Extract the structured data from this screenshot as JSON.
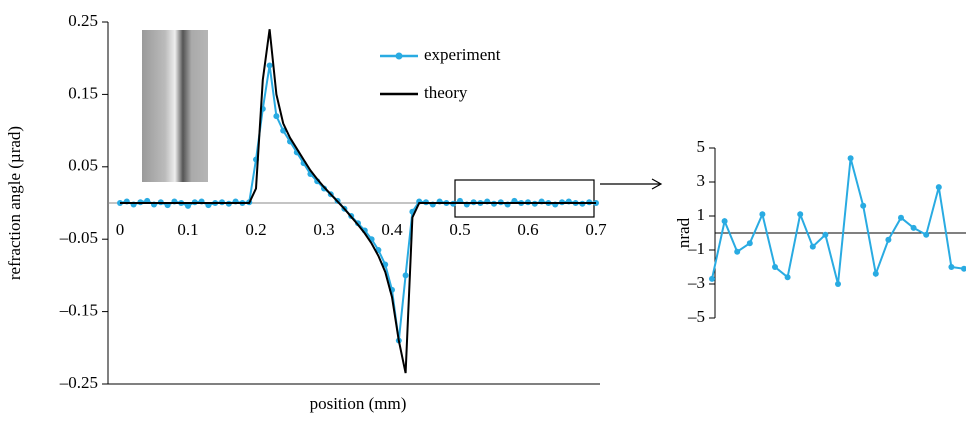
{
  "chart_data": [
    {
      "type": "line",
      "xlabel": "position (mm)",
      "ylabel": "refraction angle (µrad)",
      "xlim": [
        0,
        0.7
      ],
      "xticks": [
        0,
        0.1,
        0.2,
        0.3,
        0.4,
        0.5,
        0.6,
        0.7
      ],
      "ylim": [
        -0.25,
        0.25
      ],
      "yticks": [
        {
          "value": -0.25,
          "label": "–0.25"
        },
        {
          "value": -0.15,
          "label": "–0.15"
        },
        {
          "value": -0.05,
          "label": "–0.05"
        },
        0.05,
        0.15,
        0.25
      ],
      "x": [
        0,
        0.01,
        0.02,
        0.03,
        0.04,
        0.05,
        0.06,
        0.07,
        0.08,
        0.09,
        0.1,
        0.11,
        0.12,
        0.13,
        0.14,
        0.15,
        0.16,
        0.17,
        0.18,
        0.19,
        0.2,
        0.21,
        0.22,
        0.23,
        0.24,
        0.25,
        0.26,
        0.27,
        0.28,
        0.29,
        0.3,
        0.31,
        0.32,
        0.33,
        0.34,
        0.35,
        0.36,
        0.37,
        0.38,
        0.39,
        0.4,
        0.41,
        0.42,
        0.43,
        0.44,
        0.45,
        0.46,
        0.47,
        0.48,
        0.49,
        0.5,
        0.51,
        0.52,
        0.53,
        0.54,
        0.55,
        0.56,
        0.57,
        0.58,
        0.59,
        0.6,
        0.61,
        0.62,
        0.63,
        0.64,
        0.65,
        0.66,
        0.67,
        0.68,
        0.69,
        0.7
      ],
      "series": [
        {
          "name": "experiment",
          "color": "#29abe2",
          "markers": true,
          "values": [
            0,
            0.002,
            -0.002,
            0.001,
            0.003,
            -0.002,
            0.001,
            -0.003,
            0.002,
            0,
            -0.004,
            0.001,
            0.002,
            -0.003,
            0,
            0.001,
            -0.001,
            0.002,
            0,
            0.001,
            0.06,
            0.13,
            0.19,
            0.12,
            0.1,
            0.085,
            0.07,
            0.055,
            0.04,
            0.03,
            0.02,
            0.012,
            0.003,
            -0.008,
            -0.018,
            -0.028,
            -0.038,
            -0.05,
            -0.065,
            -0.085,
            -0.12,
            -0.19,
            -0.1,
            -0.012,
            0.002,
            0.001,
            -0.002,
            0.002,
            0,
            -0.001,
            0.003,
            -0.002,
            0.001,
            0,
            0.002,
            -0.001,
            0.001,
            -0.002,
            0.003,
            0,
            0.001,
            -0.001,
            0.002,
            0,
            -0.002,
            0.001,
            0.002,
            0,
            -0.001,
            0.001,
            0
          ]
        },
        {
          "name": "theory",
          "color": "#000000",
          "markers": false,
          "values": [
            0,
            0,
            0,
            0,
            0,
            0,
            0,
            0,
            0,
            0,
            0,
            0,
            0,
            0,
            0,
            0,
            0,
            0,
            0,
            0,
            0.02,
            0.17,
            0.24,
            0.15,
            0.11,
            0.09,
            0.075,
            0.06,
            0.045,
            0.033,
            0.022,
            0.012,
            0.002,
            -0.008,
            -0.019,
            -0.03,
            -0.042,
            -0.056,
            -0.073,
            -0.095,
            -0.13,
            -0.19,
            -0.235,
            -0.02,
            0,
            0,
            0,
            0,
            0,
            0,
            0,
            0,
            0,
            0,
            0,
            0,
            0,
            0,
            0,
            0,
            0,
            0,
            0,
            0,
            0,
            0,
            0,
            0,
            0,
            0,
            0
          ]
        }
      ]
    },
    {
      "type": "line",
      "ylabel": "nrad",
      "ylim": [
        -5,
        5
      ],
      "yticks": [
        {
          "value": -5,
          "label": "–5"
        },
        {
          "value": -3,
          "label": "–3"
        },
        {
          "value": -1,
          "label": "–1"
        },
        1,
        3,
        5
      ],
      "categories": [
        null,
        null,
        null,
        null,
        null,
        null,
        null,
        null,
        null,
        null,
        null,
        null,
        null,
        null,
        null,
        null,
        null,
        null,
        null,
        null,
        null
      ],
      "series": [
        {
          "color": "#29abe2",
          "markers": true,
          "values": [
            -2.7,
            0.7,
            -1.1,
            -0.6,
            1.1,
            -2.0,
            -2.6,
            1.1,
            -0.8,
            -0.1,
            -3.0,
            4.4,
            1.6,
            -2.4,
            -0.4,
            0.9,
            0.3,
            -0.1,
            2.7,
            -2.0,
            -2.1
          ]
        }
      ]
    }
  ]
}
